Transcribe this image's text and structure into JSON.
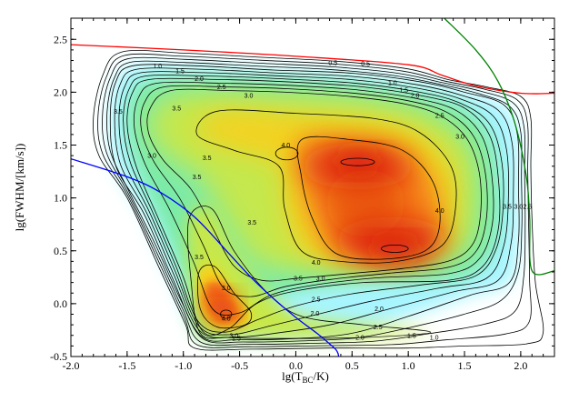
{
  "chart_data": {
    "type": "heatmap",
    "title": "",
    "xlabel_main": "lg(T",
    "xlabel_sub": "BC",
    "xlabel_tail": "/K)",
    "ylabel": "lg(FWHM/[km/s])",
    "xlim": [
      -2.0,
      2.3
    ],
    "ylim": [
      -0.5,
      2.7
    ],
    "x_ticks": [
      -2.0,
      -1.5,
      -1.0,
      -0.5,
      0.0,
      0.5,
      1.0,
      1.5,
      2.0
    ],
    "x_tick_labels": [
      "-2.0",
      "-1.5",
      "-1.0",
      "-0.5",
      "0.0",
      "0.5",
      "1.0",
      "1.5",
      "2.0"
    ],
    "y_ticks": [
      -0.5,
      0.0,
      0.5,
      1.0,
      1.5,
      2.0,
      2.5
    ],
    "y_tick_labels": [
      "-0.5",
      "0.0",
      "0.5",
      "1.0",
      "1.5",
      "2.0",
      "2.5"
    ],
    "grid": false,
    "colormap": [
      "#ffffff",
      "#a8f5ff",
      "#7ceba8",
      "#c8e84a",
      "#f5d21e",
      "#f5781a",
      "#d9140e"
    ],
    "contour_levels": [
      0.5,
      1.0,
      1.5,
      2.0,
      2.5,
      3.0,
      3.5,
      4.0
    ],
    "contour_labels": [
      {
        "text": "0.5",
        "x": 0.33,
        "y": 2.28
      },
      {
        "text": "1.0",
        "x": -1.23,
        "y": 2.25
      },
      {
        "text": "1.5",
        "x": -1.03,
        "y": 2.2
      },
      {
        "text": "2.0",
        "x": -0.86,
        "y": 2.13
      },
      {
        "text": "2.5",
        "x": -0.66,
        "y": 2.05
      },
      {
        "text": "3.0",
        "x": -0.42,
        "y": 1.97
      },
      {
        "text": "0.5",
        "x": 0.62,
        "y": 2.27
      },
      {
        "text": "1.0",
        "x": 0.86,
        "y": 2.09
      },
      {
        "text": "1.5",
        "x": 0.96,
        "y": 2.02
      },
      {
        "text": "2.0",
        "x": 1.06,
        "y": 1.97
      },
      {
        "text": "2.5",
        "x": 1.28,
        "y": 1.78
      },
      {
        "text": "3.0",
        "x": 1.46,
        "y": 1.58
      },
      {
        "text": "3.5",
        "x": -1.58,
        "y": 1.82
      },
      {
        "text": "3.5",
        "x": -1.06,
        "y": 1.85
      },
      {
        "text": "3.0",
        "x": -1.28,
        "y": 1.4
      },
      {
        "text": "3.5",
        "x": -0.79,
        "y": 1.38
      },
      {
        "text": "3.5",
        "x": -0.88,
        "y": 1.2
      },
      {
        "text": "4.0",
        "x": -0.09,
        "y": 1.5
      },
      {
        "text": "4.0",
        "x": 1.28,
        "y": 0.88
      },
      {
        "text": "4.0",
        "x": 0.18,
        "y": 0.39
      },
      {
        "text": "3.5",
        "x": -0.39,
        "y": 0.77
      },
      {
        "text": "3.5",
        "x": 1.88,
        "y": 0.92
      },
      {
        "text": "3.0",
        "x": 1.98,
        "y": 0.92
      },
      {
        "text": "2.5",
        "x": 2.06,
        "y": 0.92
      },
      {
        "text": "3.5",
        "x": 0.02,
        "y": 0.24
      },
      {
        "text": "3.0",
        "x": 0.22,
        "y": 0.24
      },
      {
        "text": "3.5",
        "x": -0.86,
        "y": 0.44
      },
      {
        "text": "3.0",
        "x": -0.62,
        "y": 0.15
      },
      {
        "text": "2.5",
        "x": 0.18,
        "y": 0.04
      },
      {
        "text": "2.0",
        "x": 0.17,
        "y": -0.09
      },
      {
        "text": "2.0",
        "x": 0.74,
        "y": -0.05
      },
      {
        "text": "4.0",
        "x": -0.62,
        "y": -0.14
      },
      {
        "text": "3.0",
        "x": -0.55,
        "y": -0.3
      },
      {
        "text": "2.5",
        "x": 0.73,
        "y": -0.22
      },
      {
        "text": "2.0",
        "x": 0.57,
        "y": -0.32
      },
      {
        "text": "1.5",
        "x": 1.03,
        "y": -0.3
      },
      {
        "text": "1.0",
        "x": 1.23,
        "y": -0.32
      },
      {
        "text": "1.5",
        "x": -0.53,
        "y": -0.33
      }
    ],
    "density_peaks": [
      {
        "x": 0.55,
        "y": 1.34,
        "density": 4.4
      },
      {
        "x": 0.88,
        "y": 0.52,
        "density": 4.4
      },
      {
        "x": -0.68,
        "y": -0.07,
        "density": 4.3
      }
    ],
    "boundary_lines": [
      {
        "color": "#ff0000",
        "x": [
          -2.0,
          -1.0,
          0.0,
          1.0,
          1.3,
          1.6,
          2.0,
          2.3
        ],
        "y": [
          2.45,
          2.4,
          2.34,
          2.26,
          2.16,
          2.06,
          1.99,
          1.99
        ]
      },
      {
        "color": "#0000ff",
        "x": [
          -2.0,
          -1.5,
          -1.2,
          -0.9,
          -0.6,
          -0.4,
          -0.2,
          0.0,
          0.2,
          0.3,
          0.36,
          0.38,
          0.36
        ],
        "y": [
          1.37,
          1.2,
          1.05,
          0.82,
          0.48,
          0.25,
          0.05,
          -0.13,
          -0.29,
          -0.38,
          -0.44,
          -0.5,
          -0.55
        ]
      },
      {
        "color": "#008000",
        "x": [
          1.32,
          1.6,
          1.8,
          1.95,
          2.05,
          2.08,
          2.1,
          2.3
        ],
        "y": [
          2.7,
          2.4,
          2.1,
          1.7,
          1.2,
          0.8,
          0.31,
          0.31
        ]
      }
    ]
  }
}
